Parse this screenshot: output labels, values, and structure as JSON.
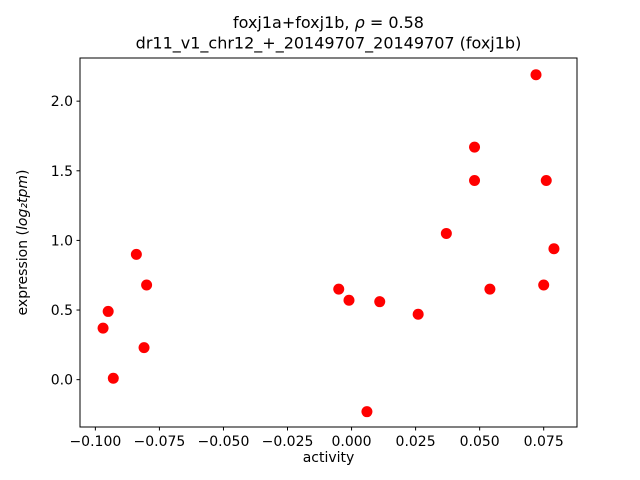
{
  "figure": {
    "title": {
      "line1_prefix": "foxj1a+foxj1b, ",
      "line1_math": "ρ",
      "line1_suffix": " = 0.58",
      "line2": "dr11_v1_chr12_+_20149707_20149707 (foxj1b)"
    },
    "axes": {
      "xlabel": "activity",
      "ylabel_prefix": "expression (",
      "ylabel_math": "log₂tpm",
      "ylabel_suffix": ")"
    }
  },
  "chart_data": {
    "type": "scatter",
    "title": "foxj1a+foxj1b, ρ = 0.58",
    "subtitle": "dr11_v1_chr12_+_20149707_20149707 (foxj1b)",
    "xlabel": "activity",
    "ylabel": "expression (log₂tpm)",
    "correlation_rho": 0.58,
    "grid": false,
    "legend": "none",
    "marker": {
      "shape": "circle",
      "color": "#ff0000",
      "radius_px": 5.5
    },
    "xlim": [
      -0.106,
      0.088
    ],
    "ylim": [
      -0.34,
      2.31
    ],
    "xticks": {
      "values": [
        -0.1,
        -0.075,
        -0.05,
        -0.025,
        0.0,
        0.025,
        0.05,
        0.075
      ],
      "labels": [
        "−0.100",
        "−0.075",
        "−0.050",
        "−0.025",
        "0.000",
        "0.025",
        "0.050",
        "0.075"
      ]
    },
    "yticks": {
      "values": [
        0.0,
        0.5,
        1.0,
        1.5,
        2.0
      ],
      "labels": [
        "0.0",
        "0.5",
        "1.0",
        "1.5",
        "2.0"
      ]
    },
    "points": [
      {
        "x": -0.097,
        "y": 0.37
      },
      {
        "x": -0.095,
        "y": 0.49
      },
      {
        "x": -0.093,
        "y": 0.01
      },
      {
        "x": -0.084,
        "y": 0.9
      },
      {
        "x": -0.081,
        "y": 0.23
      },
      {
        "x": -0.08,
        "y": 0.68
      },
      {
        "x": -0.005,
        "y": 0.65
      },
      {
        "x": -0.001,
        "y": 0.57
      },
      {
        "x": 0.006,
        "y": -0.23
      },
      {
        "x": 0.011,
        "y": 0.56
      },
      {
        "x": 0.026,
        "y": 0.47
      },
      {
        "x": 0.037,
        "y": 1.05
      },
      {
        "x": 0.048,
        "y": 1.67
      },
      {
        "x": 0.048,
        "y": 1.43
      },
      {
        "x": 0.054,
        "y": 0.65
      },
      {
        "x": 0.072,
        "y": 2.19
      },
      {
        "x": 0.075,
        "y": 0.68
      },
      {
        "x": 0.076,
        "y": 1.43
      },
      {
        "x": 0.079,
        "y": 0.94
      }
    ]
  }
}
